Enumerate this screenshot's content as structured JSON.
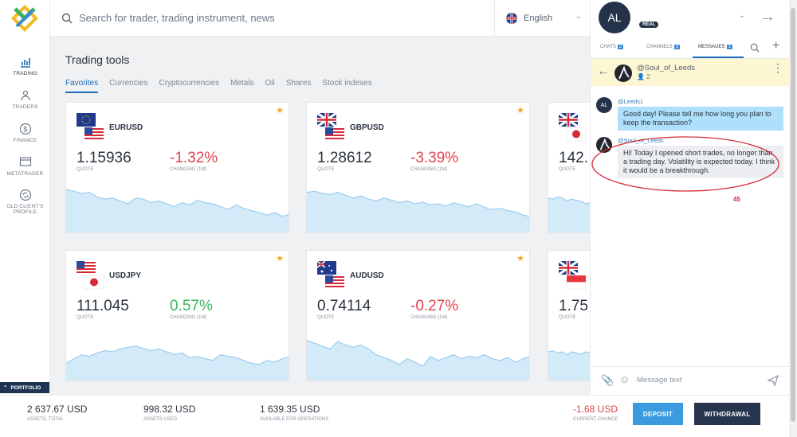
{
  "header": {
    "search_placeholder": "Search for trader, trading instrument, news",
    "language": "English"
  },
  "sidebar": {
    "items": [
      {
        "label": "Trading"
      },
      {
        "label": "Traders"
      },
      {
        "label": "Finance"
      },
      {
        "label": "Metatrader"
      },
      {
        "label": "Old client's"
      },
      {
        "label": "profile"
      }
    ],
    "portfolio_label": "Portfolio"
  },
  "main": {
    "title": "Trading tools",
    "tabs": [
      {
        "label": "Favorites"
      },
      {
        "label": "Currencies"
      },
      {
        "label": "Cryptocurrencies"
      },
      {
        "label": "Metals"
      },
      {
        "label": "Oil"
      },
      {
        "label": "Shares"
      },
      {
        "label": "Stock indexes"
      }
    ],
    "quote_label": "Quote",
    "change_label": "Changing (1M)",
    "cards": [
      {
        "symbol": "EURUSD",
        "quote": "1.15936",
        "change": "-1.32%",
        "change_color": "#e0434e",
        "spark": [
          0.75,
          0.72,
          0.68,
          0.7,
          0.62,
          0.58,
          0.6,
          0.55,
          0.5,
          0.6,
          0.58,
          0.52,
          0.55,
          0.5,
          0.45,
          0.52,
          0.48,
          0.56,
          0.52,
          0.5,
          0.45,
          0.4,
          0.48,
          0.42,
          0.38,
          0.35,
          0.3,
          0.35,
          0.28,
          0.32
        ]
      },
      {
        "symbol": "GBPUSD",
        "quote": "1.28612",
        "change": "-3.39%",
        "change_color": "#e0434e",
        "spark": [
          0.7,
          0.72,
          0.68,
          0.66,
          0.7,
          0.65,
          0.6,
          0.64,
          0.58,
          0.55,
          0.6,
          0.56,
          0.52,
          0.55,
          0.5,
          0.53,
          0.48,
          0.5,
          0.46,
          0.52,
          0.48,
          0.45,
          0.5,
          0.44,
          0.4,
          0.42,
          0.38,
          0.36,
          0.3,
          0.28
        ]
      },
      {
        "symbol": "",
        "quote": "142.",
        "change": "",
        "change_color": "#e0434e",
        "spark": [
          0.6,
          0.58,
          0.62,
          0.6,
          0.55,
          0.58,
          0.56,
          0.54,
          0.5,
          0.52
        ]
      },
      {
        "symbol": "USDJPY",
        "quote": "111.045",
        "change": "0.57%",
        "change_color": "#3cb55c",
        "spark": [
          0.3,
          0.38,
          0.45,
          0.42,
          0.48,
          0.52,
          0.5,
          0.55,
          0.58,
          0.6,
          0.56,
          0.52,
          0.55,
          0.5,
          0.45,
          0.48,
          0.4,
          0.42,
          0.38,
          0.35,
          0.45,
          0.42,
          0.4,
          0.35,
          0.3,
          0.28,
          0.35,
          0.32,
          0.38,
          0.42
        ]
      },
      {
        "symbol": "AUDUSD",
        "quote": "0.74114",
        "change": "-0.27%",
        "change_color": "#e0434e",
        "spark": [
          0.7,
          0.65,
          0.6,
          0.55,
          0.68,
          0.62,
          0.58,
          0.62,
          0.55,
          0.45,
          0.4,
          0.35,
          0.28,
          0.38,
          0.32,
          0.25,
          0.42,
          0.35,
          0.4,
          0.45,
          0.38,
          0.42,
          0.4,
          0.45,
          0.38,
          0.35,
          0.4,
          0.32,
          0.38,
          0.42
        ]
      },
      {
        "symbol": "",
        "quote": "1.75",
        "change": "",
        "change_color": "#e0434e",
        "spark": [
          0.5,
          0.52,
          0.48,
          0.5,
          0.45,
          0.5,
          0.48,
          0.46,
          0.5,
          0.48
        ]
      }
    ]
  },
  "user": {
    "initials": "AL",
    "account_type": "REAL"
  },
  "chat": {
    "tabs": [
      {
        "label": "Chats",
        "count": "2"
      },
      {
        "label": "Channels",
        "count": "3"
      },
      {
        "label": "Messages",
        "count": "1"
      }
    ],
    "thread_name": "@Soul_of_Leeds",
    "thread_members": "2",
    "messages": [
      {
        "avatar": "AL",
        "author": "@Leeds1",
        "text": "Good day! Please tell me how long you plan to keep the transaction?"
      },
      {
        "avatar": "",
        "author": "@Soul_of_Leeds",
        "text": "Hi! Today I opened short trades, no longer than a trading day. Volatility is expected today. I think it would be a breakthrough."
      }
    ],
    "annotation": "45",
    "composer_placeholder": "Message text"
  },
  "footer": {
    "stats": [
      {
        "value": "2 637.67 USD",
        "label": "Assets, total"
      },
      {
        "value": "998.32 USD",
        "label": "Assets used"
      },
      {
        "value": "1 639.35 USD",
        "label": "Available for operations"
      }
    ],
    "current_change": {
      "value": "-1.68 USD",
      "label": "Current change"
    },
    "deposit_label": "Deposit",
    "withdrawal_label": "Withdrawal"
  }
}
